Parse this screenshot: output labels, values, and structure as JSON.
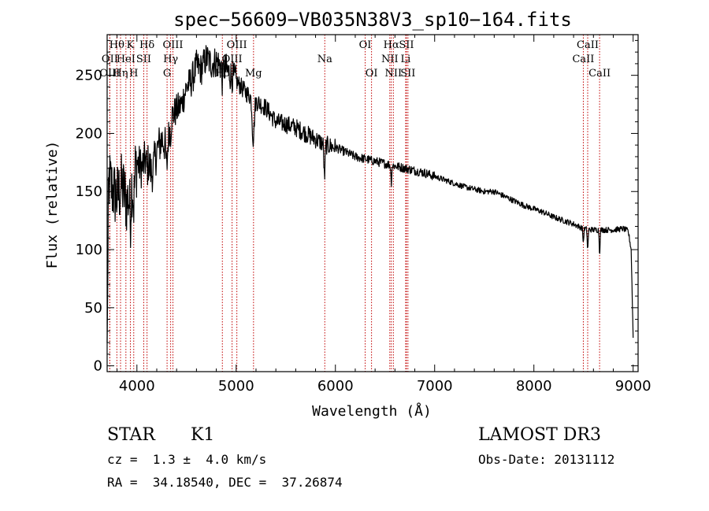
{
  "chart_data": {
    "type": "line",
    "title": "spec−56609−VB035N38V3_sp10−164.fits",
    "xlabel": "Wavelength (Å)",
    "ylabel": "Flux (relative)",
    "xlim": [
      3700,
      9050
    ],
    "ylim": [
      -5,
      285
    ],
    "xticks": [
      4000,
      5000,
      6000,
      7000,
      8000,
      9000
    ],
    "yticks": [
      0,
      50,
      100,
      150,
      200,
      250
    ],
    "continuum": {
      "x": [
        3700,
        3720,
        3760,
        3800,
        3850,
        3900,
        3950,
        4000,
        4050,
        4100,
        4150,
        4200,
        4250,
        4300,
        4350,
        4400,
        4450,
        4500,
        4550,
        4600,
        4650,
        4700,
        4750,
        4800,
        4850,
        4900,
        4950,
        5000,
        5100,
        5200,
        5300,
        5400,
        5500,
        5600,
        5700,
        5800,
        5900,
        6000,
        6100,
        6200,
        6300,
        6400,
        6500,
        6600,
        6700,
        6800,
        6900,
        7000,
        7100,
        7200,
        7300,
        7400,
        7500,
        7600,
        7700,
        7800,
        7900,
        8000,
        8100,
        8200,
        8300,
        8400,
        8500,
        8600,
        8700,
        8800,
        8900,
        8950,
        8980,
        9000
      ],
      "y": [
        90,
        160,
        150,
        145,
        155,
        140,
        160,
        175,
        170,
        180,
        165,
        185,
        195,
        190,
        215,
        220,
        225,
        240,
        245,
        258,
        255,
        265,
        260,
        262,
        258,
        255,
        250,
        245,
        235,
        228,
        222,
        210,
        208,
        205,
        200,
        195,
        190,
        188,
        184,
        180,
        178,
        176,
        174,
        172,
        170,
        168,
        166,
        163,
        160,
        157,
        154,
        152,
        150,
        150,
        146,
        142,
        138,
        135,
        132,
        128,
        125,
        122,
        118,
        117,
        117,
        117,
        118,
        116,
        100,
        25
      ]
    },
    "absorption_features": [
      {
        "x": 3934,
        "depth": 25,
        "width": 10
      },
      {
        "x": 3968,
        "depth": 25,
        "width": 10
      },
      {
        "x": 4102,
        "depth": 12,
        "width": 8
      },
      {
        "x": 4300,
        "depth": 20,
        "width": 12
      },
      {
        "x": 4340,
        "depth": 10,
        "width": 8
      },
      {
        "x": 4861,
        "depth": 12,
        "width": 8
      },
      {
        "x": 5172,
        "depth": 35,
        "width": 14
      },
      {
        "x": 5890,
        "depth": 28,
        "width": 8
      },
      {
        "x": 6563,
        "depth": 15,
        "width": 6
      },
      {
        "x": 8498,
        "depth": 12,
        "width": 6
      },
      {
        "x": 8542,
        "depth": 18,
        "width": 6
      },
      {
        "x": 8662,
        "depth": 20,
        "width": 6
      }
    ],
    "line_markers": [
      {
        "label": "Hθ",
        "x": 3798,
        "row": 0
      },
      {
        "label": "OII",
        "x": 3727,
        "row": 1
      },
      {
        "label": "OIII",
        "x": 3727,
        "row": 2
      },
      {
        "label": "K",
        "x": 3934,
        "row": 0
      },
      {
        "label": "HeI",
        "x": 3889,
        "row": 1
      },
      {
        "label": "Hη",
        "x": 3835,
        "row": 2
      },
      {
        "label": "Hδ",
        "x": 4102,
        "row": 0
      },
      {
        "label": "SII",
        "x": 4069,
        "row": 1
      },
      {
        "label": "H",
        "x": 3968,
        "row": 2
      },
      {
        "label": "OIII",
        "x": 4363,
        "row": 0
      },
      {
        "label": "Hγ",
        "x": 4340,
        "row": 1
      },
      {
        "label": "G",
        "x": 4304,
        "row": 2
      },
      {
        "label": "OIII",
        "x": 5007,
        "row": 0
      },
      {
        "label": "OIII",
        "x": 4959,
        "row": 1
      },
      {
        "label": "Hβ",
        "x": 4861,
        "row": 2
      },
      {
        "label": "Mg",
        "x": 5175,
        "row": 2
      },
      {
        "label": "Na",
        "x": 5893,
        "row": 1
      },
      {
        "label": "OI",
        "x": 6300,
        "row": 0
      },
      {
        "label": "OI",
        "x": 6364,
        "row": 2
      },
      {
        "label": "Hα",
        "x": 6563,
        "row": 0
      },
      {
        "label": "SII",
        "x": 6716,
        "row": 0
      },
      {
        "label": "NII",
        "x": 6548,
        "row": 1
      },
      {
        "label": "Li",
        "x": 6708,
        "row": 1
      },
      {
        "label": "NII",
        "x": 6584,
        "row": 2
      },
      {
        "label": "SII",
        "x": 6731,
        "row": 2
      },
      {
        "label": "CaII",
        "x": 8542,
        "row": 0
      },
      {
        "label": "CaII",
        "x": 8498,
        "row": 1
      },
      {
        "label": "CaII",
        "x": 8662,
        "row": 2
      }
    ],
    "annotations": {
      "object": "STAR",
      "subclass": "K1",
      "survey": "LAMOST DR3",
      "redshift": "cz =  1.3 ±  4.0 km/s",
      "obs_date": "Obs-Date: 20131112",
      "coords": "RA =  34.18540, DEC =  37.26874"
    }
  },
  "colors": {
    "spectrum": "#000000",
    "line_marker": "#c00000",
    "axes": "#000000"
  }
}
